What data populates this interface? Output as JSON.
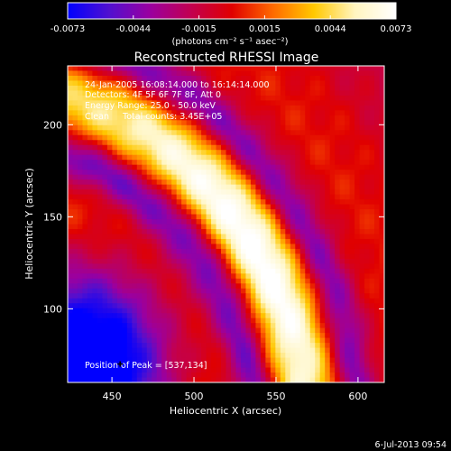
{
  "chart_data": {
    "type": "heatmap",
    "title": "Reconstructed RHESSI Image",
    "xlabel": "Heliocentric X (arcsec)",
    "ylabel": "Heliocentric Y (arcsec)",
    "xlim": [
      423,
      616
    ],
    "ylim": [
      60,
      232
    ],
    "x_ticks": [
      450,
      500,
      550,
      600
    ],
    "y_ticks": [
      100,
      150,
      200
    ],
    "colorbar": {
      "ticks": [
        "-0.0073",
        "-0.0044",
        "-0.0015",
        "0.0015",
        "0.0044",
        "0.0073"
      ],
      "range": [
        -0.0073,
        0.0073
      ],
      "unit_label": "(photons cm⁻² s⁻¹ asec⁻²)",
      "colormap": [
        "#0000ff",
        "#5010d0",
        "#9a00a0",
        "#c20050",
        "#e00000",
        "#ff6a00",
        "#ffc800",
        "#fff5c0",
        "#ffffff"
      ]
    },
    "annotations": [
      "24-Jan-2005 16:08:14.000 to 16:14:14.000",
      "Detectors: 4F 5F 6F 7F 8F, Att 0",
      "Energy Range: 25.0 - 50.0 keV",
      "Clean     Total counts: 3.45E+05",
      "Position of Peak = [537,134]"
    ],
    "peak_position": [
      537,
      134
    ],
    "peak_marker": [
      455,
      70
    ],
    "footer": "6-Jul-2013 09:54"
  }
}
